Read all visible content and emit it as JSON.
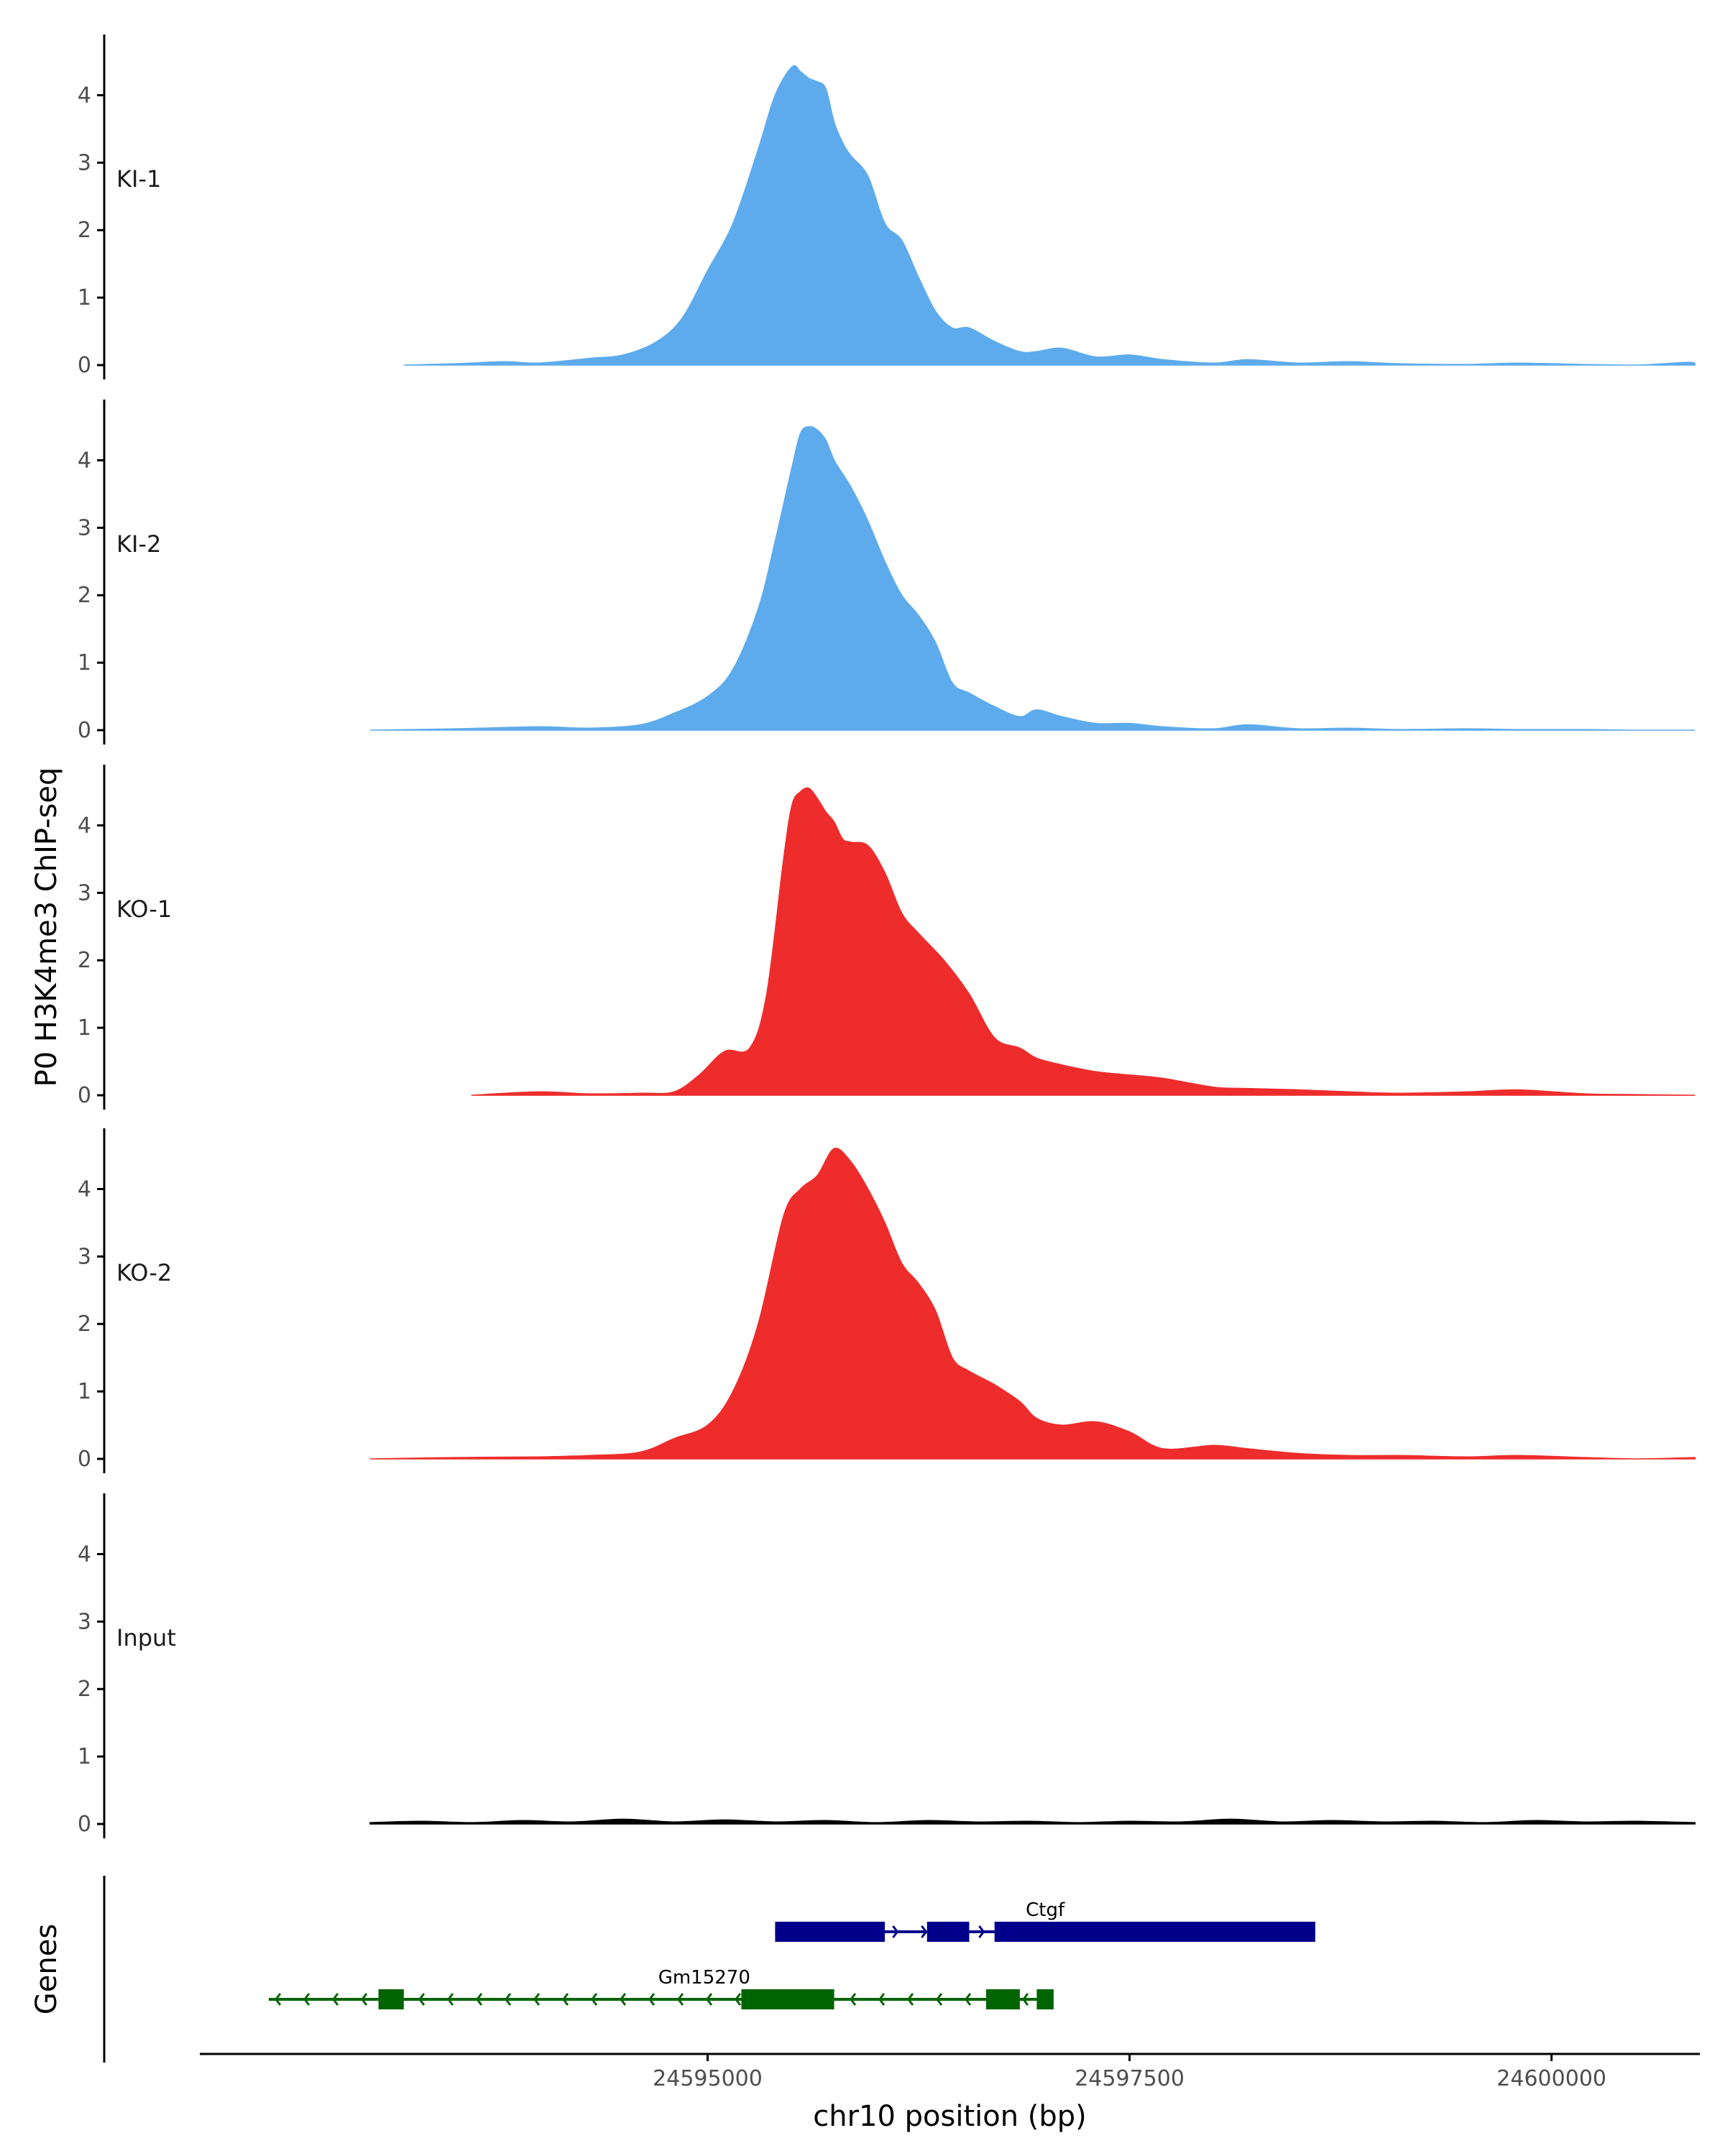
{
  "chart_data": {
    "type": "area",
    "title": "",
    "ylabel": "P0 H3K4me3 ChIP-seq",
    "xlabel": "chr10 position (bp)",
    "ylim": [
      0,
      4.9
    ],
    "xlim": [
      24592000,
      24600900
    ],
    "y_ticks": [
      0,
      1,
      2,
      3,
      4
    ],
    "x_ticks": [
      24595000,
      24597500,
      24600000
    ],
    "x_tick_labels": [
      "24595000",
      "24597500",
      "24600000"
    ],
    "colors": {
      "KI": "#5dabec",
      "KO": "#ee2c2c",
      "Input": "#000000",
      "Ctgf": "#00008b",
      "Gm15270": "#006400"
    },
    "tracks": [
      {
        "name": "KI-1",
        "color": "#5dabec",
        "x": [
          24593200,
          24593500,
          24593800,
          24594000,
          24594300,
          24594500,
          24594700,
          24594850,
          24595000,
          24595150,
          24595300,
          24595400,
          24595500,
          24595550,
          24595600,
          24595650,
          24595700,
          24595750,
          24595800,
          24595850,
          24595950,
          24596050,
          24596150,
          24596250,
          24596350,
          24596450,
          24596550,
          24596700,
          24596850,
          24596950,
          24597100,
          24597300,
          24597500,
          24597700,
          24598000,
          24598200,
          24598500,
          24598800,
          24599100,
          24599500,
          24599800,
          24600200,
          24600500,
          24600800,
          24600850
        ],
        "values": [
          0,
          0.02,
          0.05,
          0.03,
          0.1,
          0.15,
          0.35,
          0.7,
          1.4,
          2.1,
          3.2,
          4.0,
          4.42,
          4.35,
          4.25,
          4.2,
          4.1,
          3.6,
          3.3,
          3.1,
          2.8,
          2.1,
          1.85,
          1.3,
          0.8,
          0.55,
          0.55,
          0.35,
          0.2,
          0.2,
          0.25,
          0.12,
          0.15,
          0.08,
          0.03,
          0.08,
          0.03,
          0.05,
          0.02,
          0.01,
          0.03,
          0.01,
          0,
          0.04,
          0.02
        ]
      },
      {
        "name": "KI-2",
        "color": "#5dabec",
        "x": [
          24593000,
          24593500,
          24594000,
          24594300,
          24594600,
          24594800,
          24595000,
          24595150,
          24595300,
          24595400,
          24595500,
          24595550,
          24595600,
          24595650,
          24595700,
          24595750,
          24595800,
          24595850,
          24595950,
          24596050,
          24596150,
          24596250,
          24596350,
          24596450,
          24596550,
          24596700,
          24596850,
          24596950,
          24597100,
          24597300,
          24597500,
          24597700,
          24598000,
          24598200,
          24598500,
          24598800,
          24599100,
          24599500,
          24599800,
          24600200,
          24600500,
          24600850
        ],
        "values": [
          0,
          0.02,
          0.05,
          0.03,
          0.08,
          0.25,
          0.5,
          0.9,
          1.8,
          2.8,
          3.9,
          4.4,
          4.5,
          4.45,
          4.3,
          4.0,
          3.8,
          3.6,
          3.1,
          2.5,
          2.0,
          1.7,
          1.3,
          0.7,
          0.55,
          0.35,
          0.2,
          0.3,
          0.2,
          0.1,
          0.1,
          0.05,
          0.02,
          0.08,
          0.02,
          0.03,
          0.01,
          0.02,
          0.01,
          0.01,
          0,
          0
        ]
      },
      {
        "name": "KO-1",
        "color": "#ee2c2c",
        "x": [
          24593600,
          24594000,
          24594300,
          24594600,
          24594800,
          24594950,
          24595100,
          24595250,
          24595350,
          24595450,
          24595500,
          24595550,
          24595600,
          24595650,
          24595700,
          24595750,
          24595800,
          24595850,
          24595950,
          24596050,
          24596150,
          24596250,
          24596400,
          24596550,
          24596700,
          24596850,
          24596950,
          24597100,
          24597300,
          24597500,
          24597700,
          24598000,
          24598200,
          24598500,
          24598800,
          24599100,
          24599500,
          24599800,
          24600200,
          24600500,
          24600850
        ],
        "values": [
          0,
          0.05,
          0.02,
          0.03,
          0.05,
          0.3,
          0.65,
          0.7,
          1.5,
          3.5,
          4.3,
          4.5,
          4.55,
          4.4,
          4.2,
          4.05,
          3.8,
          3.75,
          3.7,
          3.3,
          2.7,
          2.4,
          2.0,
          1.5,
          0.85,
          0.7,
          0.55,
          0.45,
          0.35,
          0.3,
          0.25,
          0.12,
          0.1,
          0.08,
          0.05,
          0.03,
          0.05,
          0.08,
          0.02,
          0.01,
          0
        ]
      },
      {
        "name": "KO-2",
        "color": "#ee2c2c",
        "x": [
          24593000,
          24593500,
          24594000,
          24594300,
          24594600,
          24594800,
          24595000,
          24595150,
          24595300,
          24595450,
          24595550,
          24595650,
          24595750,
          24595850,
          24595950,
          24596050,
          24596150,
          24596250,
          24596350,
          24596450,
          24596550,
          24596700,
          24596850,
          24596950,
          24597100,
          24597300,
          24597500,
          24597700,
          24598000,
          24598200,
          24598500,
          24598800,
          24599100,
          24599500,
          24599800,
          24600200,
          24600500,
          24600850
        ],
        "values": [
          0,
          0.02,
          0.03,
          0.05,
          0.1,
          0.3,
          0.5,
          1.0,
          2.0,
          3.6,
          4.0,
          4.2,
          4.6,
          4.4,
          4.0,
          3.5,
          2.9,
          2.6,
          2.2,
          1.5,
          1.3,
          1.1,
          0.85,
          0.6,
          0.5,
          0.55,
          0.4,
          0.15,
          0.2,
          0.15,
          0.08,
          0.05,
          0.05,
          0.03,
          0.05,
          0.02,
          0,
          0.02
        ]
      },
      {
        "name": "Input",
        "color": "#000000",
        "x": [
          24593000,
          24593300,
          24593600,
          24593900,
          24594200,
          24594500,
          24594800,
          24595100,
          24595400,
          24595700,
          24596000,
          24596300,
          24596600,
          24596900,
          24597200,
          24597500,
          24597800,
          24598100,
          24598400,
          24598700,
          24599000,
          24599300,
          24599600,
          24599900,
          24600200,
          24600500,
          24600850
        ],
        "values": [
          0.02,
          0.04,
          0.02,
          0.05,
          0.03,
          0.07,
          0.03,
          0.06,
          0.03,
          0.05,
          0.02,
          0.05,
          0.03,
          0.04,
          0.02,
          0.04,
          0.03,
          0.07,
          0.03,
          0.05,
          0.03,
          0.04,
          0.02,
          0.05,
          0.03,
          0.04,
          0.02
        ]
      }
    ],
    "genes": [
      {
        "name": "Ctgf",
        "strand": "+",
        "color": "#00008b",
        "row": 1,
        "label_x": 24597000,
        "start": 24595400,
        "end": 24598600,
        "exons": [
          [
            24595400,
            24596050
          ],
          [
            24596300,
            24596550
          ],
          [
            24596700,
            24598600
          ]
        ]
      },
      {
        "name": "Gm15270",
        "strand": "-",
        "color": "#006400",
        "row": 2,
        "label_x": 24594980,
        "start": 24592400,
        "end": 24596950,
        "exons": [
          [
            24593050,
            24593200
          ],
          [
            24595200,
            24595750
          ],
          [
            24596650,
            24596850
          ],
          [
            24596950,
            24597050
          ]
        ]
      }
    ],
    "genes_label": "Genes"
  }
}
